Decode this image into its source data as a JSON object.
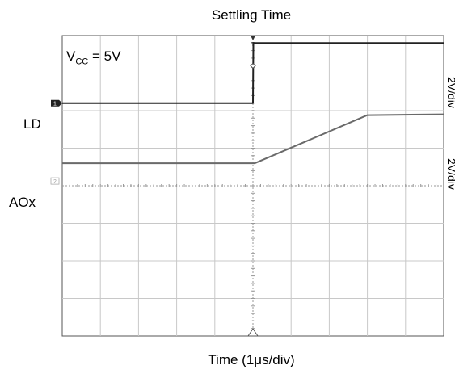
{
  "chart_data": {
    "type": "line",
    "title": "Settling Time",
    "xlabel": "Time (1μs/div)",
    "annotation": {
      "prefix": "V",
      "subscript": "CC",
      "suffix": " = 5V"
    },
    "grid": true,
    "xlim": [
      0,
      10
    ],
    "ylim": [
      0,
      8
    ],
    "x_divisions": 10,
    "y_divisions": 8,
    "series": [
      {
        "name": "LD",
        "channel_marker": "1",
        "scale": "2V/div",
        "color": "#222222",
        "x": [
          0,
          5.0,
          5.01,
          10
        ],
        "y": [
          6.2,
          6.2,
          7.8,
          7.8
        ]
      },
      {
        "name": "AOx",
        "channel_marker": "2",
        "scale": "2V/div",
        "color": "#6a6a6a",
        "x": [
          0,
          5.05,
          8.0,
          10
        ],
        "y": [
          4.6,
          4.6,
          5.88,
          5.9
        ]
      }
    ],
    "trigger_marker": "T"
  }
}
